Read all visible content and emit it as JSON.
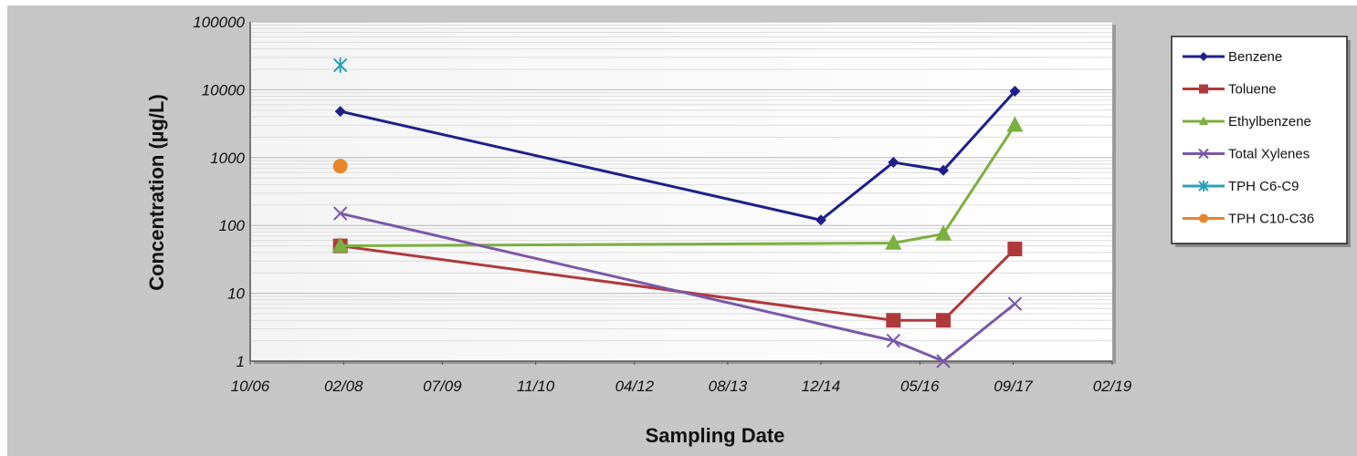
{
  "chart_data": {
    "type": "line",
    "xlabel": "Sampling Date",
    "ylabel": "Concentration (µg/L)",
    "yscale": "log",
    "ylim": [
      1,
      100000
    ],
    "y_ticks": [
      "1",
      "10",
      "100",
      "1000",
      "10000",
      "100000"
    ],
    "xlim": [
      "2006-10-01",
      "2019-02-01"
    ],
    "x_ticks": [
      {
        "date": "2006-10-01",
        "label": "10/06"
      },
      {
        "date": "2008-02-01",
        "label": "02/08"
      },
      {
        "date": "2009-07-01",
        "label": "07/09"
      },
      {
        "date": "2010-11-01",
        "label": "11/10"
      },
      {
        "date": "2012-04-01",
        "label": "04/12"
      },
      {
        "date": "2013-08-01",
        "label": "08/13"
      },
      {
        "date": "2014-12-01",
        "label": "12/14"
      },
      {
        "date": "2016-05-01",
        "label": "05/16"
      },
      {
        "date": "2017-09-01",
        "label": "09/17"
      },
      {
        "date": "2019-02-01",
        "label": "02/19"
      }
    ],
    "grid": true,
    "legend_position": "right",
    "series": [
      {
        "name": "Benzene",
        "color": "#1f1f8a",
        "marker": "diamond",
        "x": [
          "2008-01-15",
          "2014-12-01",
          "2015-12-15",
          "2016-09-01",
          "2017-09-10"
        ],
        "y": [
          4800,
          120,
          850,
          650,
          9500
        ]
      },
      {
        "name": "Toluene",
        "color": "#b03a3a",
        "marker": "square",
        "x": [
          "2008-01-15",
          "2015-12-15",
          "2016-09-01",
          "2017-09-10"
        ],
        "y": [
          50,
          4,
          4,
          45
        ]
      },
      {
        "name": "Ethylbenzene",
        "color": "#7ab040",
        "marker": "triangle",
        "x": [
          "2008-01-15",
          "2015-12-15",
          "2016-09-01",
          "2017-09-10"
        ],
        "y": [
          50,
          55,
          75,
          3000
        ]
      },
      {
        "name": "Total Xylenes",
        "color": "#7a58a8",
        "marker": "x",
        "x": [
          "2008-01-15",
          "2015-12-15",
          "2016-09-01",
          "2017-09-10"
        ],
        "y": [
          150,
          2,
          1,
          7
        ]
      },
      {
        "name": "TPH C6-C9",
        "color": "#2aa0b8",
        "marker": "star",
        "x": [
          "2008-01-15"
        ],
        "y": [
          23000
        ]
      },
      {
        "name": "TPH C10-C36",
        "color": "#e8862a",
        "marker": "circle",
        "x": [
          "2008-01-15"
        ],
        "y": [
          750
        ]
      }
    ]
  }
}
